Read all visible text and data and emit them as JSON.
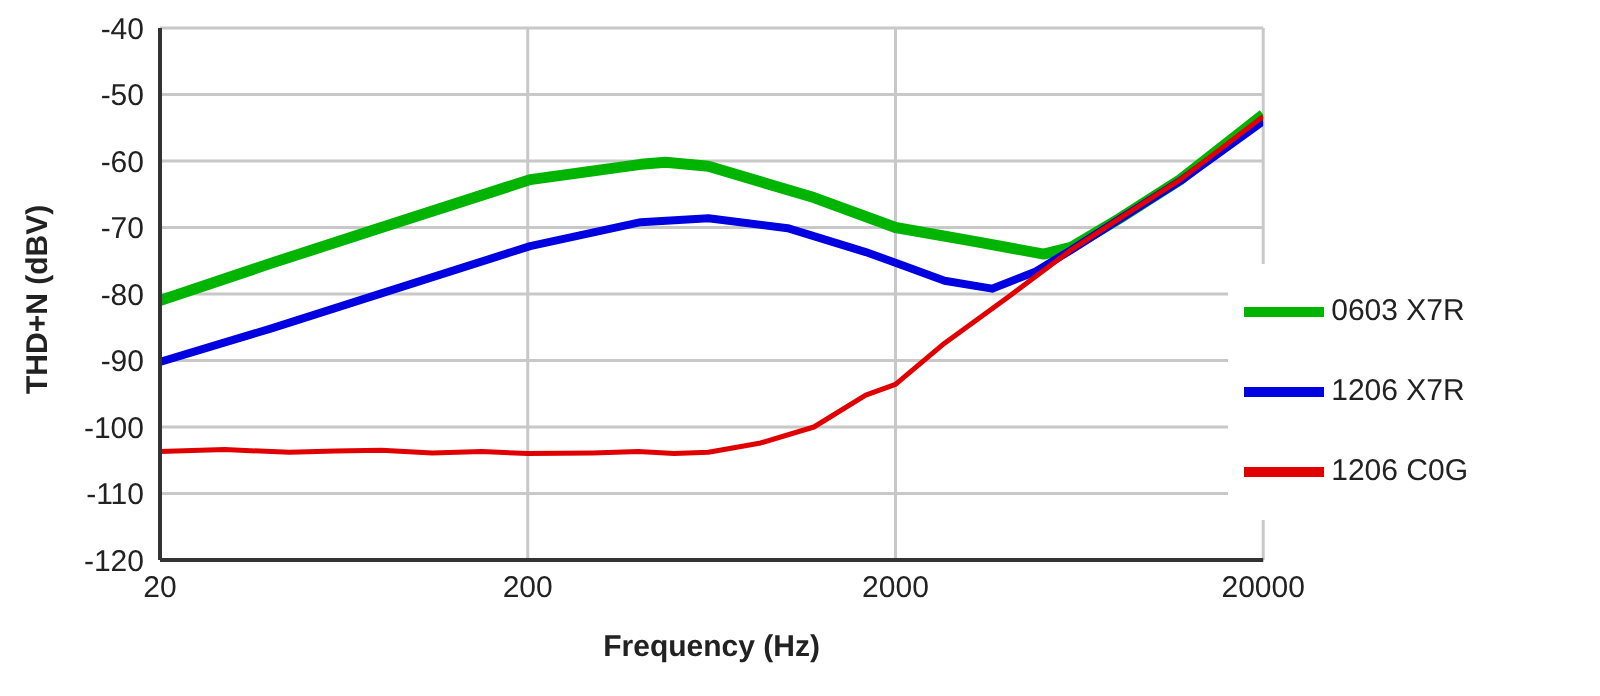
{
  "chart_data": {
    "type": "line",
    "xlabel": "Frequency (Hz)",
    "ylabel": "THD+N (dBV)",
    "log": "x",
    "xlim": [
      20,
      20000
    ],
    "xticks": [
      20,
      200,
      2000,
      20000
    ],
    "ylim": [
      -120,
      -40
    ],
    "yticks": [
      -120,
      -110,
      -100,
      -90,
      -80,
      -70,
      -60,
      -50,
      -40
    ],
    "grid": true,
    "legend": "bottom right",
    "marker": "none",
    "line_style": "solid",
    "series": [
      {
        "name": "0603 X7R",
        "color": "#00b400",
        "x": [
          20,
          40,
          80,
          203,
          406,
          474,
          620,
          1200,
          2000,
          3220,
          5060,
          6000,
          8100,
          11900,
          20000
        ],
        "values": [
          -81,
          -75.4,
          -70,
          -62.8,
          -60.5,
          -60.2,
          -60.8,
          -65.5,
          -70,
          -72,
          -74,
          -73,
          -68.7,
          -62.8,
          -53
        ]
      },
      {
        "name": "1206 X7R",
        "color": "#0000e0",
        "x": [
          20,
          40,
          80,
          203,
          406,
          620,
          1018,
          1660,
          2000,
          2720,
          3660,
          4780,
          6000,
          8100,
          11900,
          20000
        ],
        "values": [
          -90.2,
          -85.2,
          -79.9,
          -72.8,
          -69.2,
          -68.6,
          -70.1,
          -73.7,
          -75.3,
          -78,
          -79.2,
          -76.7,
          -73.4,
          -68.8,
          -63,
          -54
        ]
      },
      {
        "name": "1206 C0G",
        "color": "#e00000",
        "x": [
          20,
          30,
          45,
          60,
          80,
          110,
          150,
          200,
          300,
          400,
          500,
          620,
          860,
          1200,
          1660,
          2000,
          2720,
          4060,
          6000,
          8100,
          11900,
          20000
        ],
        "values": [
          -103.7,
          -103.4,
          -103.8,
          -103.6,
          -103.5,
          -103.9,
          -103.7,
          -104,
          -103.9,
          -103.7,
          -104,
          -103.8,
          -102.4,
          -100,
          -95.2,
          -93.6,
          -87.4,
          -80.4,
          -73.4,
          -68.7,
          -62.8,
          -53.3
        ]
      }
    ]
  }
}
